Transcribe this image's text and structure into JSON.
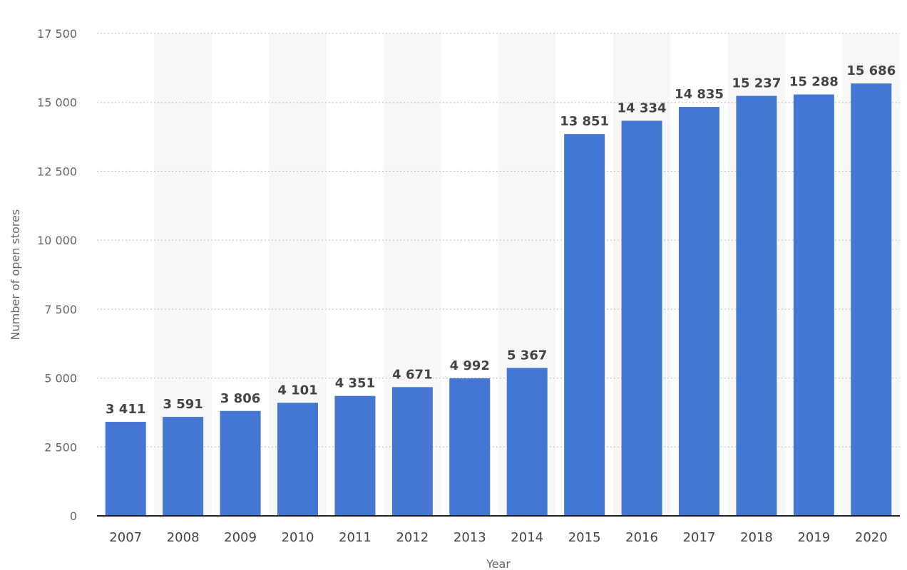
{
  "chart_data": {
    "type": "bar",
    "title": "",
    "xlabel": "Year",
    "ylabel": "Number of open stores",
    "categories": [
      "2007",
      "2008",
      "2009",
      "2010",
      "2011",
      "2012",
      "2013",
      "2014",
      "2015",
      "2016",
      "2017",
      "2018",
      "2019",
      "2020"
    ],
    "values": [
      3411,
      3591,
      3806,
      4101,
      4351,
      4671,
      4992,
      5367,
      13851,
      14334,
      14835,
      15237,
      15288,
      15686
    ],
    "value_labels": [
      "3 411",
      "3 591",
      "3 806",
      "4 101",
      "4 351",
      "4 671",
      "4 992",
      "5 367",
      "13 851",
      "14 334",
      "14 835",
      "15 237",
      "15 288",
      "15 686"
    ],
    "ylim": [
      0,
      17500
    ],
    "yticks": [
      0,
      2500,
      5000,
      7500,
      10000,
      12500,
      15000,
      17500
    ],
    "ytick_labels": [
      "0",
      "2 500",
      "5 000",
      "7 500",
      "10 000",
      "12 500",
      "15 000",
      "17 500"
    ],
    "grid": true,
    "legend": "none",
    "colors": {
      "bar": "#4477d4",
      "band": "#f7f7f7",
      "grid": "#bbbbbb",
      "axis": "#222222"
    }
  }
}
